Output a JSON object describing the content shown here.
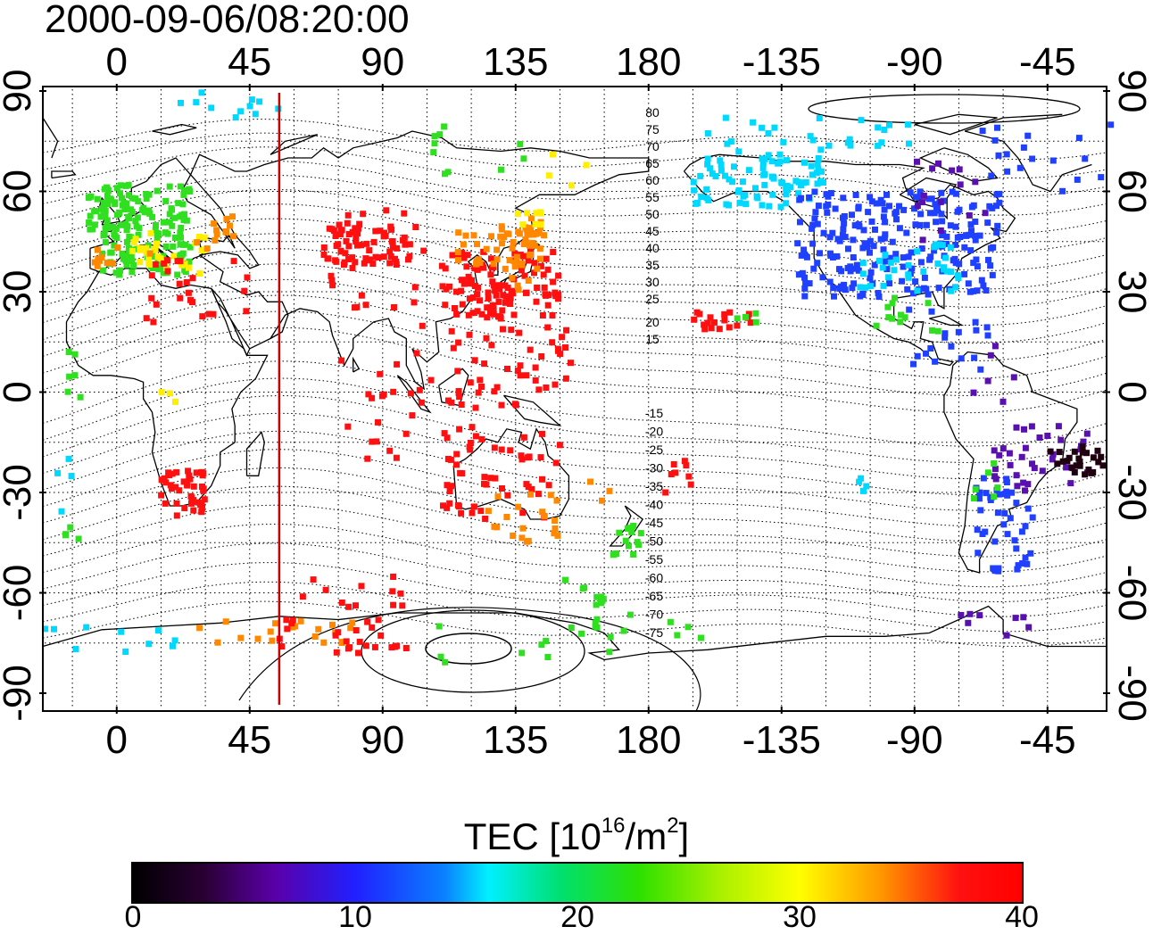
{
  "title": "2000-09-06/08:20:00",
  "map": {
    "top_axis_labels": [
      "0",
      "45",
      "90",
      "135",
      "180",
      "-135",
      "-90",
      "-45"
    ],
    "bottom_axis_labels": [
      "0",
      "45",
      "90",
      "135",
      "180",
      "-135",
      "-90",
      "-45"
    ],
    "left_axis_labels": [
      "90",
      "60",
      "30",
      "0",
      "-30",
      "-60",
      "-90"
    ],
    "right_axis_labels": [
      "90",
      "60",
      "30",
      "0",
      "-30",
      "-60",
      "-90"
    ],
    "contour_labels_north": [
      "80",
      "75",
      "70",
      "65",
      "60",
      "55",
      "50",
      "45",
      "40",
      "35",
      "30",
      "25",
      "20",
      "15"
    ],
    "contour_labels_south": [
      "-15",
      "-20",
      "-25",
      "-30",
      "-35",
      "-40",
      "-45",
      "-50",
      "-55",
      "-60",
      "-65",
      "-70",
      "-75"
    ],
    "terminator_longitude": 55,
    "palette": {
      "red": "#ff1010",
      "orange": "#ff8800",
      "yellow": "#ffee00",
      "green": "#30e020",
      "cyan": "#00d8ff",
      "blue": "#2040ff",
      "purple": "#5a10b0",
      "black": "#200010",
      "terminator": "#cc0000"
    }
  },
  "colorbar": {
    "title_prefix": "TEC  [10",
    "title_sup1": "16",
    "title_mid": "/m",
    "title_sup2": "2",
    "title_suffix": "]",
    "ticks": [
      "0",
      "10",
      "20",
      "30",
      "40"
    ],
    "min": 0,
    "max": 40
  }
}
